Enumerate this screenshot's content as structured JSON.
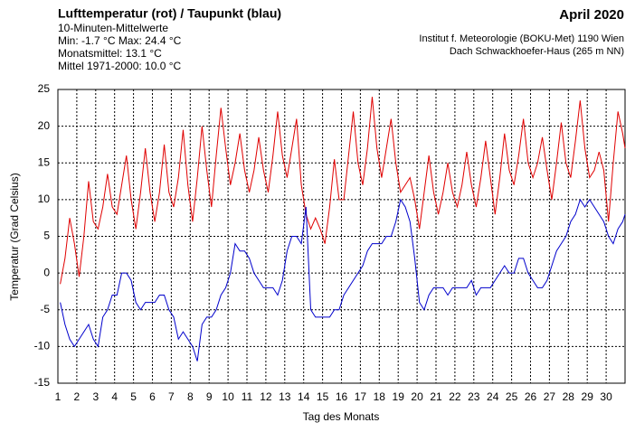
{
  "chart_data": {
    "type": "line",
    "title": "Lufttemperatur (rot) / Taupunkt (blau)",
    "subtitle": [
      "10-Minuten-Mittelwerte",
      "Min:  -1.7 °C   Max:  24.4 °C",
      "Monatsmittel:  13.1 °C",
      "Mittel 1971-2000:  10.0 °C"
    ],
    "period": "April 2020",
    "source": [
      "Institut f. Meteorologie (BOKU-Met) 1190 Wien",
      "Dach Schwackhoefer-Haus (265 m NN)"
    ],
    "x_label": "Tag des Monats",
    "y_label": "Temperatur (Grad Celsius)",
    "xlim": [
      1,
      31
    ],
    "ylim": [
      -15,
      25
    ],
    "xticks": [
      1,
      2,
      3,
      4,
      5,
      6,
      7,
      8,
      9,
      10,
      11,
      12,
      13,
      14,
      15,
      16,
      17,
      18,
      19,
      20,
      21,
      22,
      23,
      24,
      25,
      26,
      27,
      28,
      29,
      30
    ],
    "yticks": [
      -15,
      -10,
      -5,
      0,
      5,
      10,
      15,
      20,
      25
    ],
    "grid": true,
    "x": [
      1.125,
      1.375,
      1.625,
      1.875,
      2.125,
      2.375,
      2.625,
      2.875,
      3.125,
      3.375,
      3.625,
      3.875,
      4.125,
      4.375,
      4.625,
      4.875,
      5.125,
      5.375,
      5.625,
      5.875,
      6.125,
      6.375,
      6.625,
      6.875,
      7.125,
      7.375,
      7.625,
      7.875,
      8.125,
      8.375,
      8.625,
      8.875,
      9.125,
      9.375,
      9.625,
      9.875,
      10.125,
      10.375,
      10.625,
      10.875,
      11.125,
      11.375,
      11.625,
      11.875,
      12.125,
      12.375,
      12.625,
      12.875,
      13.125,
      13.375,
      13.625,
      13.875,
      14.125,
      14.375,
      14.625,
      14.875,
      15.125,
      15.375,
      15.625,
      15.875,
      16.125,
      16.375,
      16.625,
      16.875,
      17.125,
      17.375,
      17.625,
      17.875,
      18.125,
      18.375,
      18.625,
      18.875,
      19.125,
      19.375,
      19.625,
      19.875,
      20.125,
      20.375,
      20.625,
      20.875,
      21.125,
      21.375,
      21.625,
      21.875,
      22.125,
      22.375,
      22.625,
      22.875,
      23.125,
      23.375,
      23.625,
      23.875,
      24.125,
      24.375,
      24.625,
      24.875,
      25.125,
      25.375,
      25.625,
      25.875,
      26.125,
      26.375,
      26.625,
      26.875,
      27.125,
      27.375,
      27.625,
      27.875,
      28.125,
      28.375,
      28.625,
      28.875,
      29.125,
      29.375,
      29.625,
      29.875,
      30.125,
      30.375,
      30.625,
      30.875,
      31
    ],
    "series": [
      {
        "name": "Lufttemperatur",
        "color": "#e00000",
        "values": [
          -1.5,
          2,
          7.5,
          4,
          -0.5,
          5,
          12.5,
          7,
          6,
          9,
          13.5,
          9,
          8,
          12,
          16,
          10,
          6,
          11,
          17,
          11,
          7,
          11,
          17.5,
          11,
          9,
          13,
          19.5,
          12,
          7,
          13,
          20,
          14,
          9,
          16,
          22.5,
          17,
          12,
          15,
          19,
          14,
          11,
          14,
          18.5,
          14,
          11,
          16,
          22,
          16,
          13,
          17,
          21,
          12,
          8,
          6,
          7.5,
          6,
          4,
          9,
          15.5,
          10,
          10,
          16,
          22,
          15,
          12,
          17,
          24,
          17,
          13,
          17,
          21,
          15,
          11,
          12,
          13,
          10,
          6,
          11,
          16,
          11,
          8,
          11,
          15,
          11,
          9,
          12,
          16.5,
          12,
          9,
          13,
          18,
          13,
          8,
          13,
          19,
          14,
          12,
          16,
          21,
          15,
          13,
          15,
          18.5,
          14,
          10,
          15,
          20.5,
          15,
          13,
          18,
          23.5,
          17,
          13,
          14,
          16.5,
          14,
          7,
          15,
          22,
          19,
          17
        ]
      },
      {
        "name": "Taupunkt",
        "color": "#0000cc",
        "values": [
          -4,
          -7,
          -9,
          -10,
          -9,
          -8,
          -7,
          -9,
          -10,
          -6,
          -5,
          -3,
          -3,
          0,
          0,
          -1,
          -4,
          -5,
          -4,
          -4,
          -4,
          -3,
          -3,
          -5,
          -6,
          -9,
          -8,
          -9,
          -10,
          -12,
          -7,
          -6,
          -6,
          -5,
          -3,
          -2,
          0,
          4,
          3,
          3,
          2,
          0,
          -1,
          -2,
          -2,
          -2,
          -3,
          -1,
          3,
          5,
          5,
          4,
          9,
          -5,
          -6,
          -6,
          -6,
          -6,
          -5,
          -5,
          -3,
          -2,
          -1,
          0,
          1,
          3,
          4,
          4,
          4,
          5,
          5,
          7,
          10,
          9,
          7,
          2,
          -4,
          -5,
          -3,
          -2,
          -2,
          -2,
          -3,
          -2,
          -2,
          -2,
          -2,
          -1,
          -3,
          -2,
          -2,
          -2,
          -1,
          0,
          1,
          0,
          0,
          2,
          2,
          0,
          -1,
          -2,
          -2,
          -1,
          1,
          3,
          4,
          5,
          7,
          8,
          10,
          9,
          10,
          9,
          8,
          7,
          5,
          4,
          6,
          7,
          8
        ]
      }
    ]
  }
}
